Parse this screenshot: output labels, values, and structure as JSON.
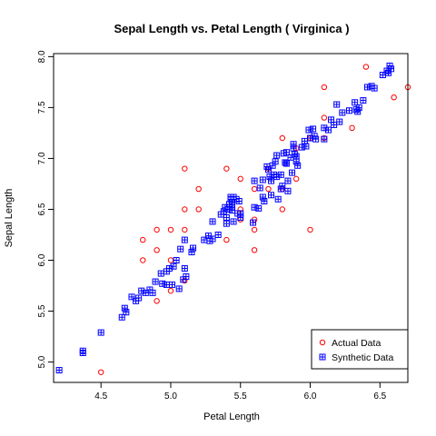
{
  "chart_data": {
    "type": "scatter",
    "title": "Sepal Length  vs.  Petal Length  ( Virginica )",
    "xlabel": "Petal Length",
    "ylabel": "Sepal Length",
    "xlim": [
      4.16,
      6.7
    ],
    "ylim": [
      4.8,
      8.03
    ],
    "x_ticks": [
      "4.5",
      "5.0",
      "5.5",
      "6.0",
      "6.5"
    ],
    "y_ticks": [
      "5.0",
      "5.5",
      "6.0",
      "6.5",
      "7.0",
      "7.5",
      "8.0"
    ],
    "grid": false,
    "legend_position": "bottom-right",
    "series": [
      {
        "name": "Actual Data",
        "marker": "open-circle",
        "color": "#ff0000",
        "points": [
          [
            4.5,
            4.9
          ],
          [
            4.8,
            6.2
          ],
          [
            4.8,
            6.0
          ],
          [
            4.9,
            6.3
          ],
          [
            4.9,
            6.1
          ],
          [
            4.9,
            5.6
          ],
          [
            5.0,
            6.3
          ],
          [
            5.0,
            6.0
          ],
          [
            5.0,
            5.7
          ],
          [
            5.1,
            6.9
          ],
          [
            5.1,
            6.5
          ],
          [
            5.1,
            6.3
          ],
          [
            5.1,
            5.8
          ],
          [
            5.2,
            6.7
          ],
          [
            5.2,
            6.5
          ],
          [
            5.4,
            6.9
          ],
          [
            5.4,
            6.2
          ],
          [
            5.5,
            6.8
          ],
          [
            5.5,
            6.5
          ],
          [
            5.5,
            6.4
          ],
          [
            5.6,
            6.7
          ],
          [
            5.6,
            6.4
          ],
          [
            5.6,
            6.3
          ],
          [
            5.6,
            6.1
          ],
          [
            5.7,
            6.9
          ],
          [
            5.7,
            6.7
          ],
          [
            5.8,
            7.2
          ],
          [
            5.8,
            6.7
          ],
          [
            5.8,
            6.5
          ],
          [
            5.9,
            7.1
          ],
          [
            5.9,
            6.8
          ],
          [
            6.0,
            7.2
          ],
          [
            6.0,
            6.3
          ],
          [
            6.1,
            7.7
          ],
          [
            6.1,
            7.4
          ],
          [
            6.1,
            7.2
          ],
          [
            6.3,
            7.3
          ],
          [
            6.4,
            7.9
          ],
          [
            6.6,
            7.6
          ],
          [
            6.7,
            7.7
          ]
        ]
      },
      {
        "name": "Synthetic Data",
        "marker": "boxed-plus",
        "color": "#0000ff",
        "points": [
          [
            4.2,
            4.92
          ],
          [
            4.37,
            5.09
          ],
          [
            4.37,
            5.11
          ],
          [
            4.5,
            5.29
          ],
          [
            4.65,
            5.44
          ],
          [
            4.67,
            5.53
          ],
          [
            4.68,
            5.49
          ],
          [
            4.72,
            5.64
          ],
          [
            4.75,
            5.6
          ],
          [
            4.77,
            5.63
          ],
          [
            4.79,
            5.7
          ],
          [
            4.82,
            5.68
          ],
          [
            4.85,
            5.71
          ],
          [
            4.87,
            5.68
          ],
          [
            4.89,
            5.79
          ],
          [
            4.93,
            5.87
          ],
          [
            4.94,
            5.77
          ],
          [
            4.97,
            5.89
          ],
          [
            4.97,
            5.76
          ],
          [
            4.99,
            5.92
          ],
          [
            5.01,
            5.76
          ],
          [
            5.02,
            5.94
          ],
          [
            5.04,
            6.0
          ],
          [
            5.06,
            5.72
          ],
          [
            5.07,
            6.11
          ],
          [
            5.09,
            5.81
          ],
          [
            5.1,
            6.2
          ],
          [
            5.1,
            5.92
          ],
          [
            5.11,
            5.84
          ],
          [
            5.15,
            6.08
          ],
          [
            5.16,
            6.12
          ],
          [
            5.24,
            6.2
          ],
          [
            5.27,
            6.24
          ],
          [
            5.28,
            6.19
          ],
          [
            5.3,
            6.38
          ],
          [
            5.3,
            6.21
          ],
          [
            5.34,
            6.25
          ],
          [
            5.36,
            6.45
          ],
          [
            5.38,
            6.48
          ],
          [
            5.39,
            6.52
          ],
          [
            5.4,
            6.42
          ],
          [
            5.4,
            6.36
          ],
          [
            5.41,
            6.5
          ],
          [
            5.42,
            6.55
          ],
          [
            5.43,
            6.62
          ],
          [
            5.43,
            6.6
          ],
          [
            5.44,
            6.57
          ],
          [
            5.44,
            6.53
          ],
          [
            5.44,
            6.49
          ],
          [
            5.45,
            6.62
          ],
          [
            5.45,
            6.38
          ],
          [
            5.47,
            6.6
          ],
          [
            5.48,
            6.46
          ],
          [
            5.49,
            6.58
          ],
          [
            5.5,
            6.46
          ],
          [
            5.5,
            6.42
          ],
          [
            5.59,
            6.37
          ],
          [
            5.6,
            6.78
          ],
          [
            5.6,
            6.52
          ],
          [
            5.63,
            6.51
          ],
          [
            5.64,
            6.71
          ],
          [
            5.66,
            6.79
          ],
          [
            5.66,
            6.62
          ],
          [
            5.67,
            6.58
          ],
          [
            5.69,
            6.92
          ],
          [
            5.7,
            6.89
          ],
          [
            5.71,
            6.82
          ],
          [
            5.72,
            6.78
          ],
          [
            5.72,
            6.64
          ],
          [
            5.73,
            6.93
          ],
          [
            5.74,
            6.84
          ],
          [
            5.75,
            6.97
          ],
          [
            5.76,
            7.03
          ],
          [
            5.76,
            6.82
          ],
          [
            5.77,
            6.6
          ],
          [
            5.79,
            6.84
          ],
          [
            5.79,
            6.7
          ],
          [
            5.8,
            6.73
          ],
          [
            5.81,
            7.05
          ],
          [
            5.82,
            6.96
          ],
          [
            5.83,
            7.06
          ],
          [
            5.83,
            6.95
          ],
          [
            5.84,
            6.78
          ],
          [
            5.84,
            6.68
          ],
          [
            5.86,
            7.01
          ],
          [
            5.87,
            6.86
          ],
          [
            5.88,
            7.14
          ],
          [
            5.88,
            7.1
          ],
          [
            5.89,
            7.04
          ],
          [
            5.9,
            7.02
          ],
          [
            5.9,
            6.97
          ],
          [
            5.91,
            6.93
          ],
          [
            5.94,
            7.11
          ],
          [
            5.96,
            7.17
          ],
          [
            5.97,
            7.12
          ],
          [
            5.99,
            7.28
          ],
          [
            6.0,
            7.2
          ],
          [
            6.02,
            7.29
          ],
          [
            6.03,
            7.22
          ],
          [
            6.04,
            7.19
          ],
          [
            6.1,
            7.19
          ],
          [
            6.1,
            7.3
          ],
          [
            6.13,
            7.28
          ],
          [
            6.15,
            7.38
          ],
          [
            6.17,
            7.33
          ],
          [
            6.19,
            7.53
          ],
          [
            6.21,
            7.36
          ],
          [
            6.23,
            7.45
          ],
          [
            6.28,
            7.47
          ],
          [
            6.32,
            7.55
          ],
          [
            6.33,
            7.48
          ],
          [
            6.34,
            7.46
          ],
          [
            6.35,
            7.5
          ],
          [
            6.38,
            7.57
          ],
          [
            6.41,
            7.7
          ],
          [
            6.44,
            7.71
          ],
          [
            6.46,
            7.69
          ],
          [
            6.52,
            7.82
          ],
          [
            6.55,
            7.86
          ],
          [
            6.56,
            7.84
          ],
          [
            6.57,
            7.91
          ],
          [
            6.58,
            7.88
          ]
        ]
      }
    ]
  }
}
